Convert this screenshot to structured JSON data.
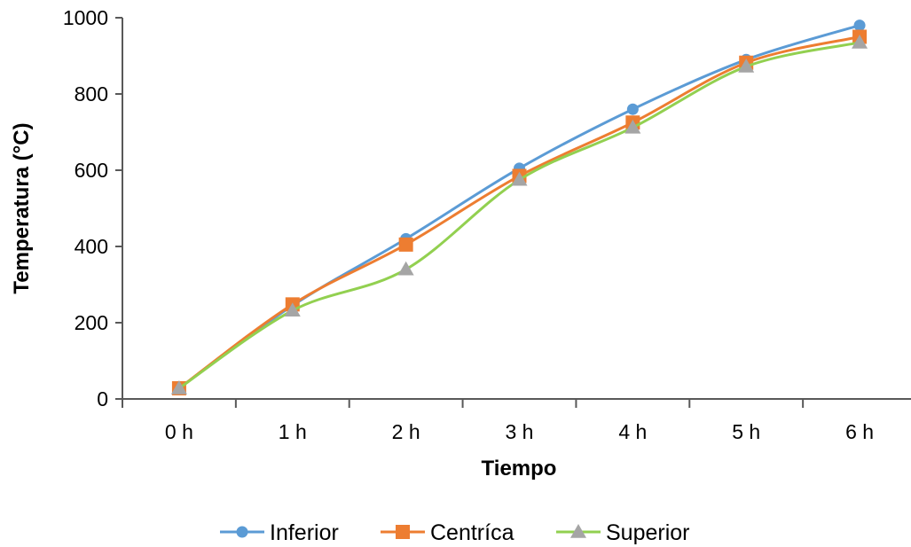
{
  "chart_data": {
    "type": "line",
    "title": "",
    "xlabel": "Tiempo",
    "ylabel": "Temperatura (°C)",
    "categories": [
      "0 h",
      "1 h",
      "2 h",
      "3 h",
      "4 h",
      "5 h",
      "6 h"
    ],
    "ylim": [
      0,
      1000
    ],
    "yticks": [
      0,
      200,
      400,
      600,
      800,
      1000
    ],
    "grid": false,
    "legend_position": "bottom",
    "series": [
      {
        "name": "Inferior",
        "color": "#5B9BD5",
        "marker": "circle",
        "values": [
          28,
          245,
          420,
          605,
          760,
          890,
          980
        ]
      },
      {
        "name": "Centríca",
        "color": "#ED7D31",
        "marker": "square",
        "values": [
          28,
          248,
          405,
          585,
          725,
          882,
          950
        ]
      },
      {
        "name": "Superior",
        "color": "#92D050",
        "marker": "triangle",
        "values": [
          28,
          232,
          340,
          575,
          712,
          872,
          935
        ]
      }
    ]
  }
}
